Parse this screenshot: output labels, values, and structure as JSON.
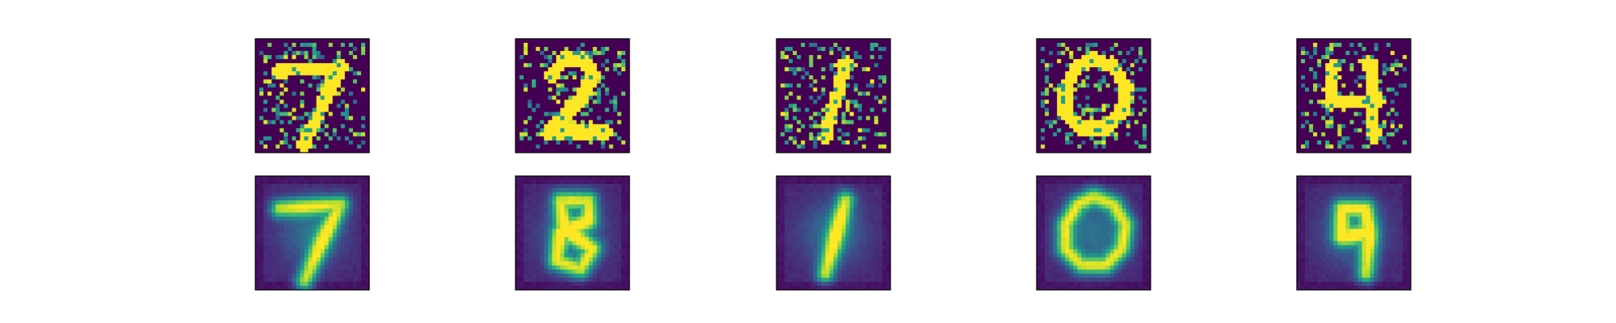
{
  "figure": {
    "background": "#ffffff",
    "colormap": "viridis",
    "frame_color": "#000000",
    "layout": {
      "rows": 2,
      "cols": 5
    }
  },
  "chart_data": {
    "type": "heatmap",
    "axes_visible": false,
    "grid": false,
    "rows": [
      {
        "role": "noisy-input",
        "image_resolution": [
          28,
          28
        ],
        "noise": "salt-and-pepper",
        "smooth": false
      },
      {
        "role": "reconstruction",
        "image_resolution": [
          28,
          28
        ],
        "noise": "none",
        "smooth": true
      }
    ],
    "digits": [
      7,
      2,
      1,
      0,
      4
    ],
    "reconstructed_shapes": [
      7,
      8,
      1,
      0,
      9
    ],
    "value_range": [
      0,
      1
    ]
  }
}
